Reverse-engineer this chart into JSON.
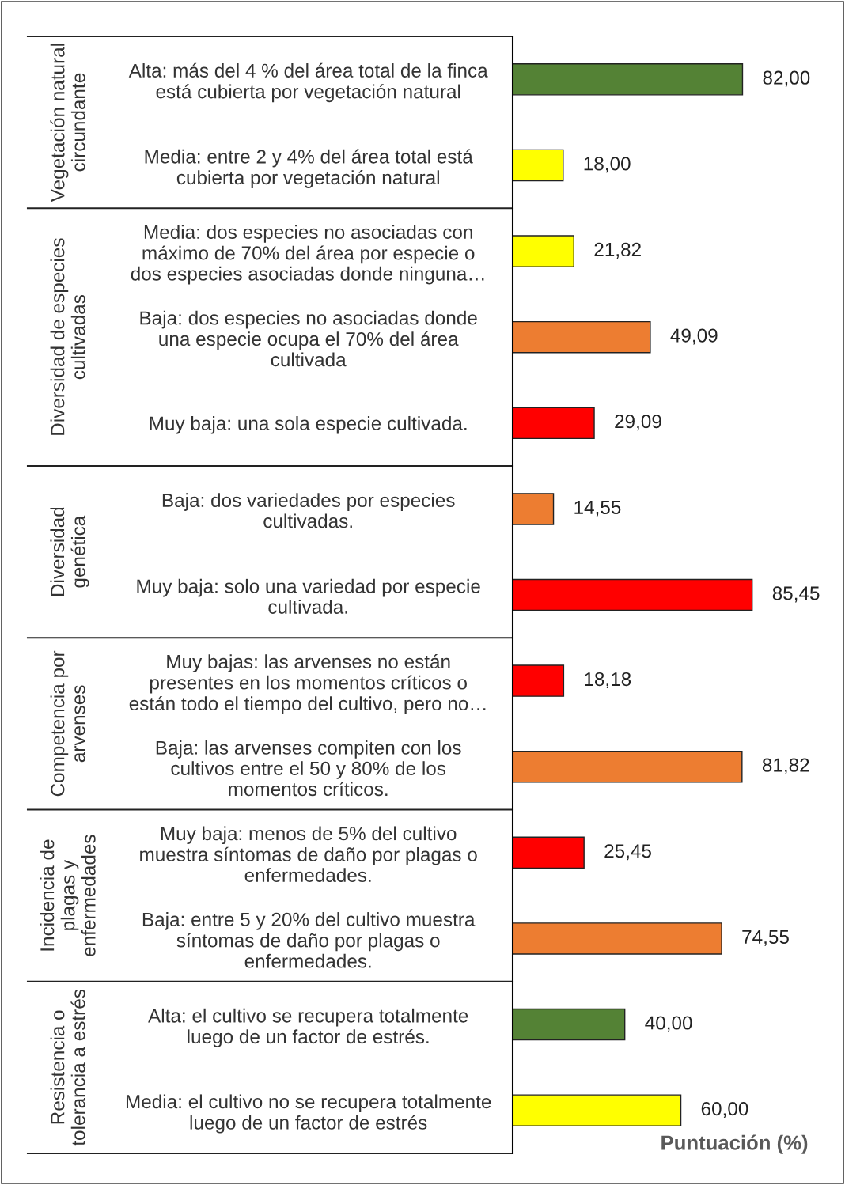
{
  "chart_data": {
    "type": "bar",
    "orientation": "horizontal",
    "xlabel": "Puntuación (%)",
    "categories": [
      "Alta: más del 4 % del área total de la finca\nestá cubierta por vegetación natural",
      "Media: entre 2 y 4% del área total está\ncubierta por vegetación natural",
      "Media: dos especies no asociadas con\nmáximo de 70% del área por especie o\ndos especies asociadas donde ninguna…",
      "Baja: dos especies no asociadas donde\nuna especie ocupa el 70% del área\ncultivada",
      "Muy baja: una sola especie cultivada.",
      "Baja: dos variedades por especies\ncultivadas.",
      "Muy baja: solo una variedad por especie\ncultivada.",
      "Muy bajas: las arvenses no están\npresentes en los momentos críticos o\nestán todo el tiempo del cultivo, pero no…",
      "Baja: las arvenses compiten con los\ncultivos entre el 50 y 80% de los\nmomentos críticos.",
      "Muy baja: menos de 5% del cultivo\nmuestra síntomas de daño por plagas o\nenfermedades.",
      "Baja: entre 5 y 20% del cultivo muestra\nsíntomas de daño por plagas o\nenfermedades.",
      "Alta: el cultivo se recupera totalmente\nluego de un factor de estrés.",
      "Media: el cultivo no se recupera totalmente\nluego de un factor de estrés"
    ],
    "values": [
      82.0,
      18.0,
      21.82,
      49.09,
      29.09,
      14.55,
      85.45,
      18.18,
      81.82,
      25.45,
      74.55,
      40.0,
      60.0
    ],
    "value_labels": [
      "82,00",
      "18,00",
      "21,82",
      "49,09",
      "29,09",
      "14,55",
      "85,45",
      "18,18",
      "81,82",
      "25,45",
      "74,55",
      "40,00",
      "60,00"
    ],
    "colors": [
      "#548235",
      "#ffff00",
      "#ffff00",
      "#ed7d31",
      "#ff0000",
      "#ed7d31",
      "#ff0000",
      "#ff0000",
      "#ed7d31",
      "#ff0000",
      "#ed7d31",
      "#548235",
      "#ffff00"
    ],
    "annotations": [
      "Vegetación natural\ncircundante",
      "Diversidad de especies\ncultivadas",
      "Diversidad\ngenética",
      "Competencia por\narvenses",
      "Incidencia de\nplagas y\nenfermedades",
      "Resistencia o\ntolerancia a estrés"
    ],
    "xlim": [
      0,
      118
    ],
    "tick_labels": "y"
  }
}
